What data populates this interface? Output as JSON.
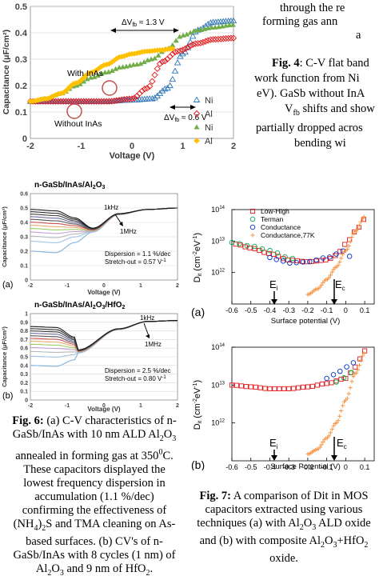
{
  "top_right_text": {
    "line1": "through the re",
    "line2": "forming gas ann",
    "line3": "a"
  },
  "fig4_side_caption": {
    "label": "Fig. 4",
    "line1": ": C-V flat band",
    "line2": "work function from Ni",
    "line3": "eV).  GaSb without InA",
    "line4_sym": "V",
    "line4_sub": "fb",
    "line4_rest": "  shifts and show",
    "line5": "partially dropped acros",
    "line6": "bending wi"
  },
  "fig4_chart": {
    "ylabel": "Capacitance (μF/cm²)",
    "xlabel": "Voltage (V)",
    "xticks": [
      "-2",
      "-1",
      "0",
      "1",
      "2"
    ],
    "yticks": [
      "0",
      "0.1",
      "0.2",
      "0.3",
      "0.4",
      "0.5"
    ],
    "annot_top": "ΔV",
    "annot_top_sub": "fb",
    "annot_top_val": " ≈ 1.3 V",
    "annot_bottom": "ΔV",
    "annot_bottom_sub": "fb",
    "annot_bottom_val": " ≈ 0.6 V",
    "label_with": "With InAs",
    "label_without": "Without InAs",
    "legend": [
      "Ni",
      "Al",
      "Ni",
      "Al"
    ]
  },
  "fig6a_chart": {
    "title_pre": "n-GaSb/InAs/Al",
    "title_sub1": "2",
    "title_mid": "O",
    "title_sub2": "3",
    "ylabel": "Capacitance (μF/cm²)",
    "xlabel": "Voltage (V)",
    "xticks": [
      "-2",
      "-1",
      "0",
      "1",
      "2"
    ],
    "yticks": [
      "0",
      "0.1",
      "0.2",
      "0.3",
      "0.4",
      "0.5",
      "0.6"
    ],
    "f_high": "1kHz",
    "f_low": "1MHz",
    "dispersion": "Dispersion = 1.1 %/dec",
    "stretch_pre": "Stretch-out = 0.57 V",
    "stretch_sup": "-1",
    "panel": "(a)"
  },
  "fig6b_chart": {
    "title_pre": "n-GaSb/InAs/Al",
    "title_sub1": "2",
    "title_mid": "O",
    "title_sub2": "3",
    "title_post": "/HfO",
    "title_sub3": "2",
    "ylabel": "Capacitance (μF/cm²)",
    "xlabel": "Voltage (V)",
    "xticks": [
      "-2",
      "-1",
      "0",
      "1",
      "2"
    ],
    "yticks": [
      "0",
      "0.1",
      "0.2",
      "0.3",
      "0.4",
      "0.5",
      "0.6",
      "0.7",
      "0.8",
      "0.9",
      "1"
    ],
    "f_high": "1kHz",
    "f_low": "1MHz",
    "dispersion": "Dispersion = 2.5 %/dec",
    "stretch_pre": "Stretch-out = 0.80 V",
    "stretch_sup": "-1",
    "panel": "(b)"
  },
  "fig7a_chart": {
    "ylabel_pre": "D",
    "ylabel_sub": "it",
    "ylabel_post": " (cm",
    "ylabel_sup1": "-2",
    "ylabel_mid": "eV",
    "ylabel_sup2": "-1",
    "ylabel_end": ")",
    "xlabel": "Surface potential (V)",
    "xticks": [
      "-0.6",
      "-0.5",
      "-0.4",
      "-0.3",
      "-0.2",
      "-0.1",
      "0",
      "0.1"
    ],
    "yticks": [
      "10",
      "10",
      "10"
    ],
    "ytick_exp": [
      "12",
      "13",
      "14"
    ],
    "legend": [
      "Low-High",
      "Terman",
      "Conductance",
      "Conductance,77K"
    ],
    "Ei": "E",
    "Ei_sub": "i",
    "Ec": "E",
    "Ec_sub": "c",
    "panel": "(a)"
  },
  "fig7b_chart": {
    "ylabel_pre": "D",
    "ylabel_sub": "it",
    "ylabel_post": " (cm",
    "ylabel_sup1": "-2",
    "ylabel_mid": "eV",
    "ylabel_sup2": "-1",
    "ylabel_end": ")",
    "xlabel": "Surface Potential (V)",
    "xticks": [
      "-0.6",
      "-0.5",
      "-0.4",
      "-0.3",
      "-0.2",
      "-0.1",
      "0",
      "0.1"
    ],
    "yticks": [
      "10",
      "10",
      "10"
    ],
    "ytick_exp": [
      "12",
      "13",
      "14"
    ],
    "Ei": "E",
    "Ei_sub": "i",
    "Ec": "E",
    "Ec_sub": "c",
    "panel": "(b)"
  },
  "fig6_caption": {
    "label": "Fig. 6:",
    "l1": " (a) C-V characteristics of n-",
    "l2a": "GaSb/InAs with 10 nm ALD Al",
    "l2b": "2",
    "l2c": "O",
    "l2d": "3",
    "l3a": "annealed in forming gas at 350",
    "l3b": "0",
    "l3c": "C.",
    "l4": "These capacitors displayed the",
    "l5": "lowest frequency dispersion in",
    "l6": "accumulation (1.1 %/dec)",
    "l7": "confirming the effectiveness of",
    "l8a": "(NH",
    "l8b": "4",
    "l8c": ")",
    "l8d": "2",
    "l8e": "S and TMA cleaning on As-",
    "l9": "based surfaces. (b) CV's of  n-",
    "l10": "GaSb/InAs with 8 cycles (1 nm) of",
    "l11a": "Al",
    "l11b": "2",
    "l11c": "O",
    "l11d": "3",
    "l11e": " and 9 nm of HfO",
    "l11f": "2",
    "l11g": "."
  },
  "fig7_caption": {
    "label": "Fig. 7:",
    "l1": " A comparison of Dit in MOS",
    "l2": "capacitors extracted using various",
    "l3a": "techniques (a) with Al",
    "l3b": "2",
    "l3c": "O",
    "l3d": "3",
    "l3e": " ALD oxide",
    "l4a": "and (b) with composite Al",
    "l4b": "2",
    "l4c": "O",
    "l4d": "3",
    "l4e": "+HfO",
    "l4f": "2",
    "l5": "oxide."
  },
  "colors": {
    "ni_a": "#2e75b6",
    "al_a": "#e3191c",
    "ni_b": "#70ad47",
    "al_b": "#ffc000",
    "circle": "#c0504d",
    "terman": "#00b050",
    "conductance": "#0033cc",
    "cond77": "#f79646"
  },
  "chart_data": [
    {
      "type": "scatter",
      "title": "",
      "xlabel": "Voltage (V)",
      "ylabel": "Capacitance (μF/cm²)",
      "xlim": [
        -2,
        2
      ],
      "ylim": [
        0,
        0.5
      ],
      "series": [
        {
          "name": "Ni",
          "x": [
            -2,
            -1.5,
            -1,
            -0.5,
            0,
            0.4,
            0.7,
            1,
            1.3,
            1.6,
            2
          ],
          "y": [
            0.14,
            0.14,
            0.14,
            0.14,
            0.145,
            0.15,
            0.19,
            0.32,
            0.41,
            0.44,
            0.445
          ]
        },
        {
          "name": "Al",
          "x": [
            -2,
            -1.5,
            -1,
            -0.5,
            0,
            0.3,
            0.6,
            0.9,
            1.3,
            1.6,
            2
          ],
          "y": [
            0.14,
            0.14,
            0.14,
            0.14,
            0.15,
            0.19,
            0.29,
            0.33,
            0.36,
            0.375,
            0.38
          ]
        },
        {
          "name": "Ni",
          "x": [
            -2,
            -1.7,
            -1.4,
            -1.1,
            -0.8,
            -0.5,
            -0.2,
            0.1,
            0.4,
            0.7,
            1,
            1.3,
            1.6,
            2
          ],
          "y": [
            0.14,
            0.15,
            0.17,
            0.2,
            0.23,
            0.25,
            0.27,
            0.28,
            0.3,
            0.34,
            0.39,
            0.41,
            0.42,
            0.43
          ]
        },
        {
          "name": "Al",
          "x": [
            -2,
            -1.7,
            -1.4,
            -1.1,
            -0.8,
            -0.5,
            -0.2,
            0,
            0.3,
            0.6,
            0.8
          ],
          "y": [
            0.14,
            0.15,
            0.17,
            0.21,
            0.25,
            0.28,
            0.31,
            0.32,
            0.33,
            0.335,
            0.34
          ]
        }
      ]
    },
    {
      "type": "line",
      "title": "n-GaSb/InAs/Al2O3",
      "xlabel": "Voltage (V)",
      "ylabel": "Capacitance (μF/cm²)",
      "xlim": [
        -2,
        2
      ],
      "ylim": [
        0,
        0.6
      ],
      "curves": 12,
      "plateau_high": 0.49,
      "plateau_low": 0.2,
      "min_voltage": -0.3,
      "min_value": 0.36,
      "right_value": 0.5
    },
    {
      "type": "line",
      "title": "n-GaSb/InAs/Al2O3/HfO2",
      "xlabel": "Voltage (V)",
      "ylabel": "Capacitance (μF/cm²)",
      "xlim": [
        -2,
        2
      ],
      "ylim": [
        0,
        1
      ],
      "curves": 12,
      "plateau_high": 0.85,
      "plateau_low": 0.4,
      "min_voltage": -0.7,
      "min_value": 0.58,
      "right_value": 0.92
    },
    {
      "type": "scatter",
      "title": "",
      "xlabel": "Surface potential (V)",
      "ylabel": "Dit (cm-2eV-1)",
      "xlim": [
        -0.6,
        0.15
      ],
      "ylim": [
        100000000000.0,
        100000000000000.0
      ],
      "yscale": "log",
      "series": [
        {
          "name": "Low-High",
          "x": [
            -0.58,
            -0.5,
            -0.4,
            -0.3,
            -0.2,
            -0.1,
            -0.05,
            0,
            0.05,
            0.1
          ],
          "y": [
            8000000000000.0,
            6000000000000.0,
            4000000000000.0,
            2500000000000.0,
            2200000000000.0,
            2500000000000.0,
            3500000000000.0,
            8000000000000.0,
            20000000000000.0,
            50000000000000.0
          ]
        },
        {
          "name": "Terman",
          "x": [
            -0.6,
            -0.5,
            -0.4,
            -0.3,
            -0.25
          ],
          "y": [
            9000000000000.0,
            7000000000000.0,
            5000000000000.0,
            3000000000000.0,
            2500000000000.0
          ]
        },
        {
          "name": "Conductance",
          "x": [
            -0.4,
            -0.35,
            -0.3,
            -0.2,
            -0.1,
            0,
            0.05
          ],
          "y": [
            3000000000000.0,
            2500000000000.0,
            2000000000000.0,
            2200000000000.0,
            3000000000000.0,
            5000000000000.0,
            1500000000000.0
          ]
        },
        {
          "name": "Conductance,77K",
          "x": [
            -0.2,
            -0.15,
            -0.1,
            -0.05,
            0,
            0.05,
            0.1
          ],
          "y": [
            200000000000.0,
            300000000000.0,
            600000000000.0,
            1500000000000.0,
            5000000000000.0,
            20000000000000.0,
            60000000000000.0
          ]
        }
      ]
    },
    {
      "type": "scatter",
      "title": "",
      "xlabel": "Surface Potential (V)",
      "ylabel": "Dit (cm-2eV-1)",
      "xlim": [
        -0.6,
        0.15
      ],
      "ylim": [
        100000000000.0,
        100000000000000.0
      ],
      "yscale": "log",
      "series": [
        {
          "name": "Low-High",
          "x": [
            -0.6,
            -0.5,
            -0.4,
            -0.3,
            -0.2,
            -0.1,
            0,
            0.05,
            0.1
          ],
          "y": [
            10000000000000.0,
            9000000000000.0,
            8000000000000.0,
            8000000000000.0,
            9000000000000.0,
            11000000000000.0,
            15000000000000.0,
            30000000000000.0,
            80000000000000.0
          ]
        },
        {
          "name": "Terman",
          "x": [
            -0.05,
            0,
            0.05
          ],
          "y": [
            12000000000000.0,
            16000000000000.0,
            25000000000000.0
          ]
        },
        {
          "name": "Conductance",
          "x": [
            -0.1,
            -0.05,
            0,
            0.05
          ],
          "y": [
            15000000000000.0,
            20000000000000.0,
            30000000000000.0,
            40000000000000.0
          ]
        },
        {
          "name": "Conductance,77K",
          "x": [
            -0.2,
            -0.15,
            -0.1,
            -0.05,
            0,
            0.05,
            0.1
          ],
          "y": [
            150000000000.0,
            200000000000.0,
            400000000000.0,
            1000000000000.0,
            4000000000000.0,
            20000000000000.0,
            70000000000000.0
          ]
        }
      ]
    }
  ]
}
